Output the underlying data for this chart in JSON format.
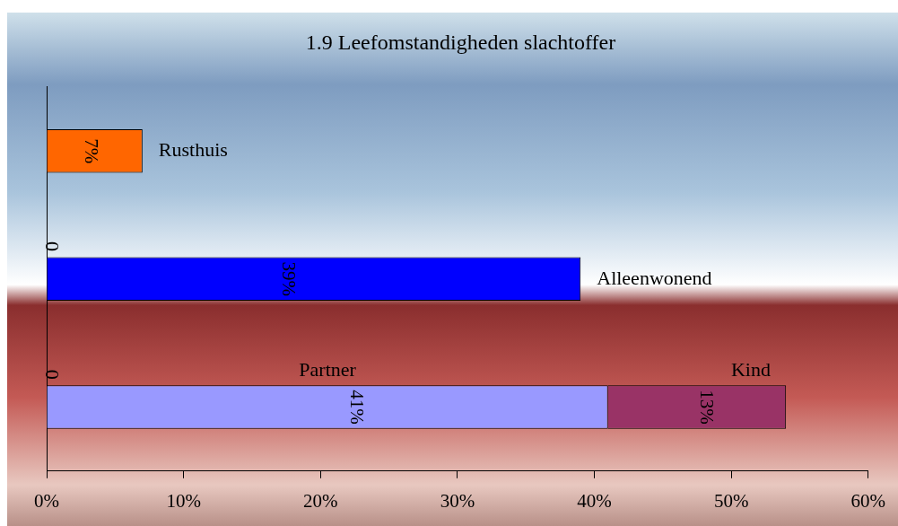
{
  "chart_data": {
    "type": "bar",
    "orientation": "horizontal",
    "stacked": true,
    "title": "1.9 Leefomstandigheden slachtoffer",
    "categories": [
      null,
      null,
      null
    ],
    "series": [
      {
        "name": "Rusthuis",
        "color": "#ff6600",
        "values": [
          7,
          null,
          null
        ],
        "value_labels": [
          "7%",
          null,
          null
        ]
      },
      {
        "name": "Alleenwonend",
        "color": "#0000ff",
        "values": [
          null,
          39,
          null
        ],
        "value_labels": [
          null,
          "39%",
          null
        ]
      },
      {
        "name": "Partner",
        "color": "#9999ff",
        "values": [
          null,
          null,
          41
        ],
        "value_labels": [
          null,
          null,
          "41%"
        ]
      },
      {
        "name": "Kind",
        "color": "#993366",
        "values": [
          null,
          null,
          13
        ],
        "value_labels": [
          null,
          null,
          "13%"
        ]
      }
    ],
    "annotations": [
      "0",
      "0"
    ],
    "xlim": [
      0,
      60
    ],
    "xticks": [
      {
        "value": 0,
        "label": "0%"
      },
      {
        "value": 10,
        "label": "10%"
      },
      {
        "value": 20,
        "label": "20%"
      },
      {
        "value": 30,
        "label": "30%"
      },
      {
        "value": 40,
        "label": "40%"
      },
      {
        "value": 50,
        "label": "50%"
      },
      {
        "value": 60,
        "label": "60%"
      }
    ],
    "grid": false,
    "legend": false
  }
}
